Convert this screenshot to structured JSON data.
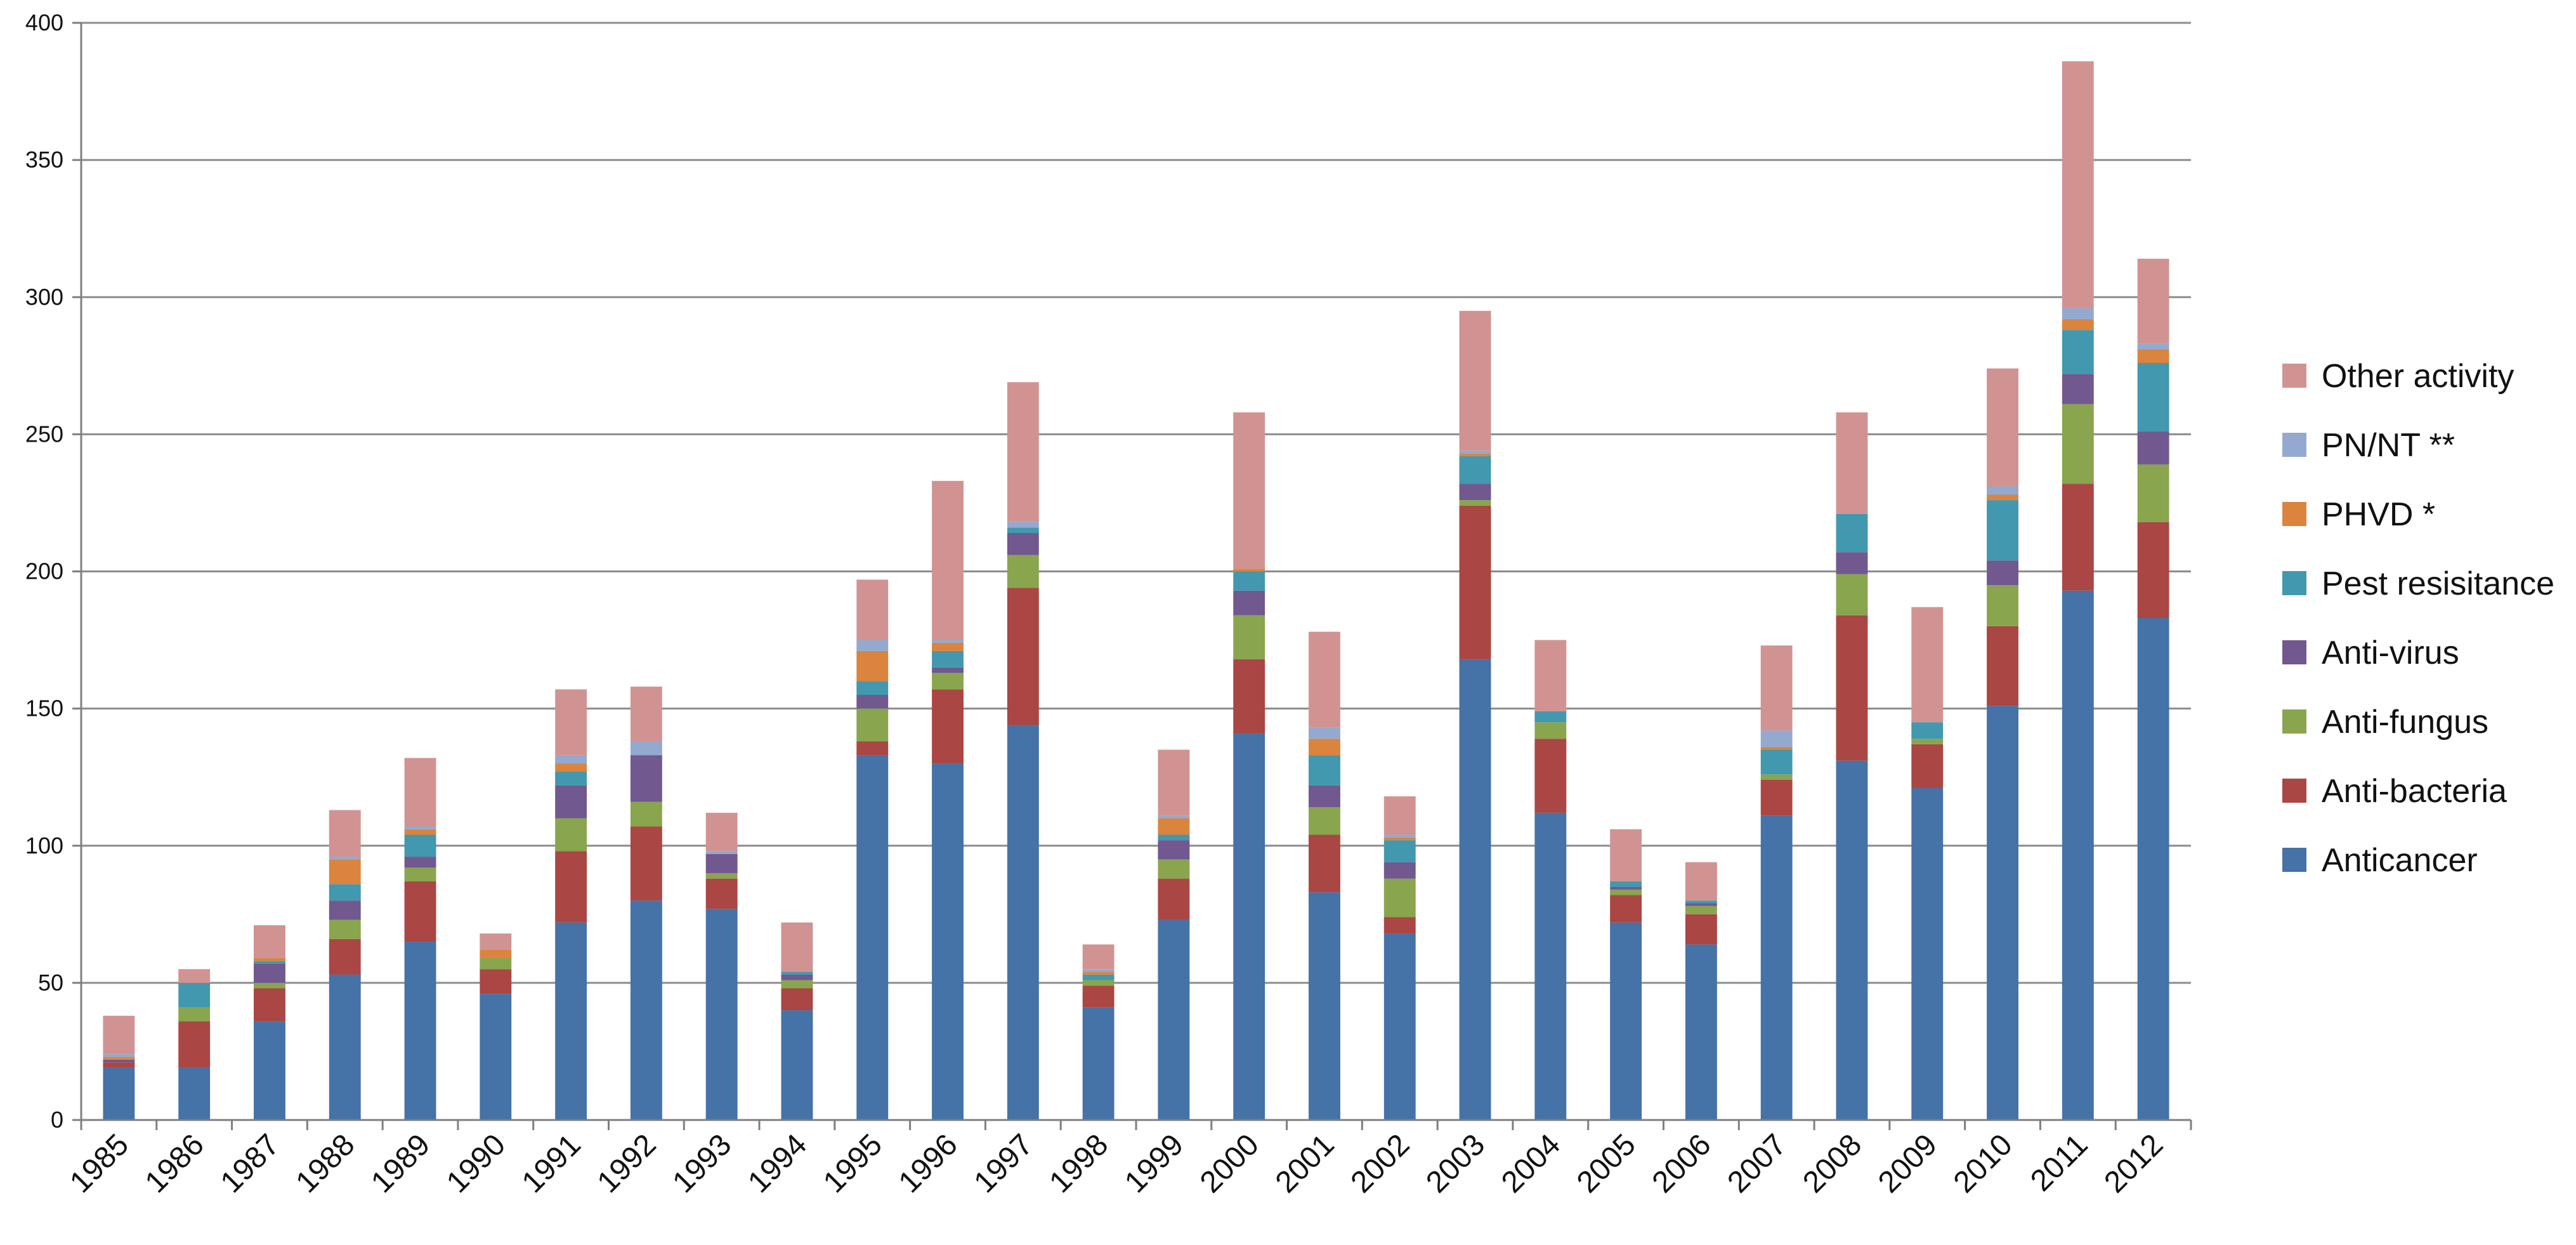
{
  "chart_data": {
    "type": "bar",
    "stacked": true,
    "title": "",
    "xlabel": "",
    "ylabel": "",
    "ylim": [
      0,
      400
    ],
    "yticks": [
      0,
      50,
      100,
      150,
      200,
      250,
      300,
      350,
      400
    ],
    "grid": "horizontal",
    "legend_position": "right",
    "categories": [
      "1985",
      "1986",
      "1987",
      "1988",
      "1989",
      "1990",
      "1991",
      "1992",
      "1993",
      "1994",
      "1995",
      "1996",
      "1997",
      "1998",
      "1999",
      "2000",
      "2001",
      "2002",
      "2003",
      "2004",
      "2005",
      "2006",
      "2007",
      "2008",
      "2009",
      "2010",
      "2011",
      "2012"
    ],
    "series": [
      {
        "name": "Anticancer",
        "color": "#4572A7",
        "values": [
          19,
          19,
          36,
          53,
          65,
          46,
          72,
          80,
          77,
          40,
          133,
          130,
          144,
          41,
          73,
          141,
          83,
          68,
          168,
          112,
          72,
          64,
          111,
          131,
          121,
          151,
          193,
          183
        ]
      },
      {
        "name": "Anti-bacteria",
        "color": "#AA4643",
        "values": [
          2,
          17,
          12,
          13,
          22,
          9,
          26,
          27,
          11,
          8,
          5,
          27,
          50,
          8,
          15,
          27,
          21,
          6,
          56,
          27,
          10,
          11,
          13,
          53,
          16,
          29,
          39,
          35
        ]
      },
      {
        "name": "Anti-fungus",
        "color": "#89A54E",
        "values": [
          0,
          5,
          2,
          7,
          5,
          4,
          12,
          9,
          2,
          3,
          12,
          6,
          12,
          2,
          7,
          16,
          10,
          14,
          2,
          6,
          2,
          3,
          2,
          15,
          2,
          15,
          29,
          21
        ]
      },
      {
        "name": "Anti-virus",
        "color": "#71588F",
        "values": [
          1,
          0,
          7,
          7,
          4,
          0,
          12,
          17,
          7,
          2,
          5,
          2,
          8,
          0,
          7,
          9,
          8,
          6,
          6,
          0,
          1,
          1,
          0,
          8,
          0,
          9,
          11,
          12
        ]
      },
      {
        "name": "Pest resisitance",
        "color": "#4198AF",
        "values": [
          0,
          9,
          1,
          6,
          8,
          0,
          5,
          0,
          0,
          1,
          5,
          6,
          2,
          2,
          2,
          7,
          11,
          8,
          10,
          4,
          2,
          1,
          9,
          14,
          6,
          22,
          16,
          25
        ]
      },
      {
        "name": "PHVD *",
        "color": "#DB843D",
        "values": [
          1,
          0,
          1,
          9,
          2,
          3,
          3,
          0,
          0,
          0,
          11,
          3,
          0,
          1,
          6,
          1,
          6,
          1,
          1,
          0,
          0,
          0,
          1,
          0,
          0,
          2,
          4,
          5
        ]
      },
      {
        "name": "PN/NT **",
        "color": "#93A9CF",
        "values": [
          1,
          0,
          0,
          1,
          1,
          0,
          3,
          5,
          1,
          0,
          4,
          1,
          2,
          1,
          1,
          0,
          4,
          1,
          1,
          0,
          0,
          0,
          6,
          0,
          0,
          3,
          4,
          2
        ]
      },
      {
        "name": "Other activity",
        "color": "#D19392",
        "values": [
          14,
          5,
          12,
          17,
          25,
          6,
          24,
          20,
          14,
          18,
          22,
          58,
          51,
          9,
          24,
          57,
          35,
          14,
          51,
          26,
          19,
          14,
          31,
          37,
          42,
          43,
          90,
          31
        ]
      }
    ]
  }
}
